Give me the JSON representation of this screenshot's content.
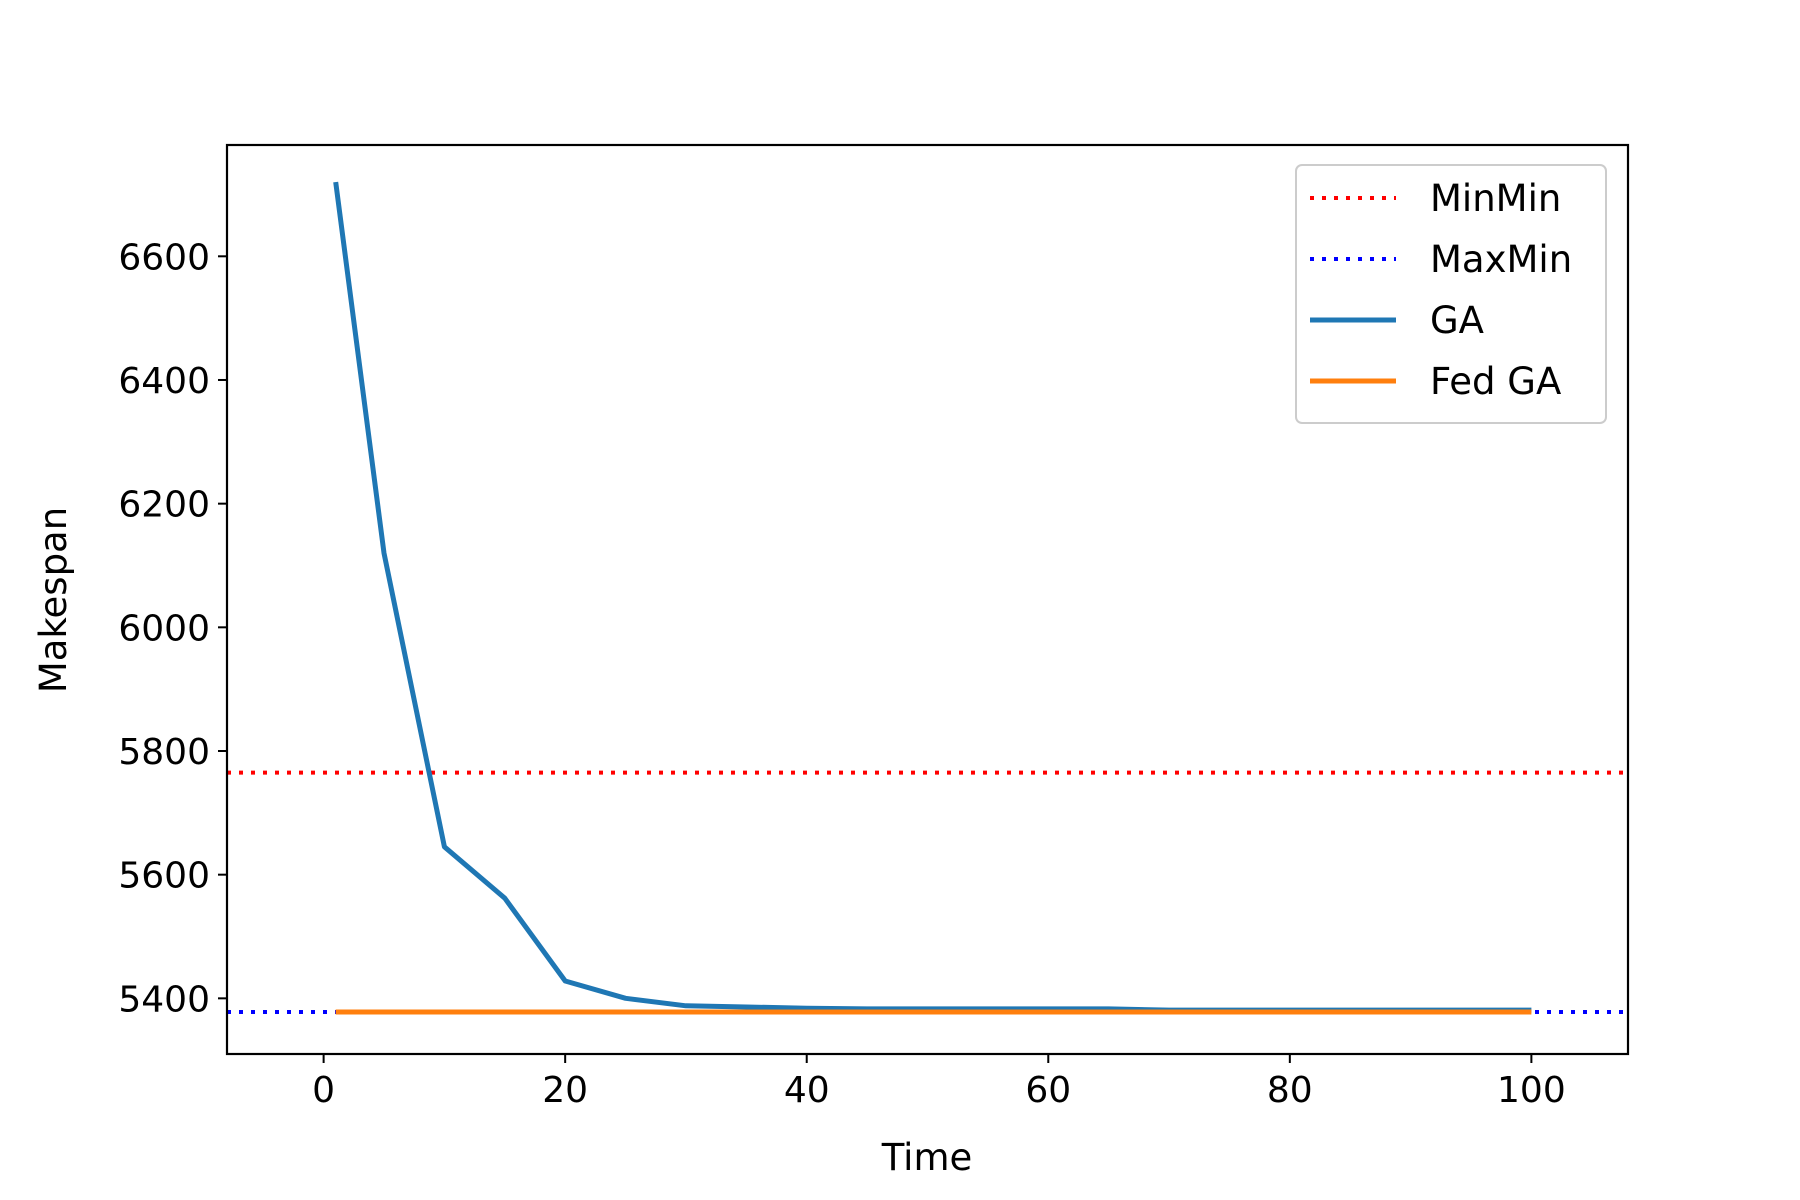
{
  "chart_data": {
    "type": "line",
    "title": "",
    "xlabel": "Time",
    "ylabel": "Makespan",
    "xlim": [
      -8,
      108
    ],
    "ylim": [
      5310,
      6780
    ],
    "xticks": [
      0,
      20,
      40,
      60,
      80,
      100
    ],
    "yticks": [
      5400,
      5600,
      5800,
      6000,
      6200,
      6400,
      6600
    ],
    "grid": false,
    "legend_position": "top-right",
    "series": [
      {
        "name": "MinMin",
        "style": "dotted",
        "color": "#ff0000",
        "x": [
          -8,
          108
        ],
        "y": [
          5765,
          5765
        ]
      },
      {
        "name": "MaxMin",
        "style": "dotted",
        "color": "#0000ff",
        "x": [
          -8,
          108
        ],
        "y": [
          5378,
          5378
        ]
      },
      {
        "name": "GA",
        "style": "solid",
        "color": "#1f77b4",
        "x": [
          1,
          5,
          10,
          15,
          20,
          25,
          30,
          35,
          40,
          45,
          50,
          55,
          60,
          65,
          70,
          75,
          80,
          85,
          90,
          95,
          100
        ],
        "y": [
          6720,
          6120,
          5645,
          5562,
          5428,
          5400,
          5388,
          5386,
          5384,
          5383,
          5383,
          5383,
          5383,
          5383,
          5381,
          5381,
          5381,
          5381,
          5381,
          5381,
          5381
        ]
      },
      {
        "name": "Fed GA",
        "style": "solid",
        "color": "#ff7f0e",
        "x": [
          1,
          100
        ],
        "y": [
          5378,
          5378
        ]
      }
    ]
  }
}
